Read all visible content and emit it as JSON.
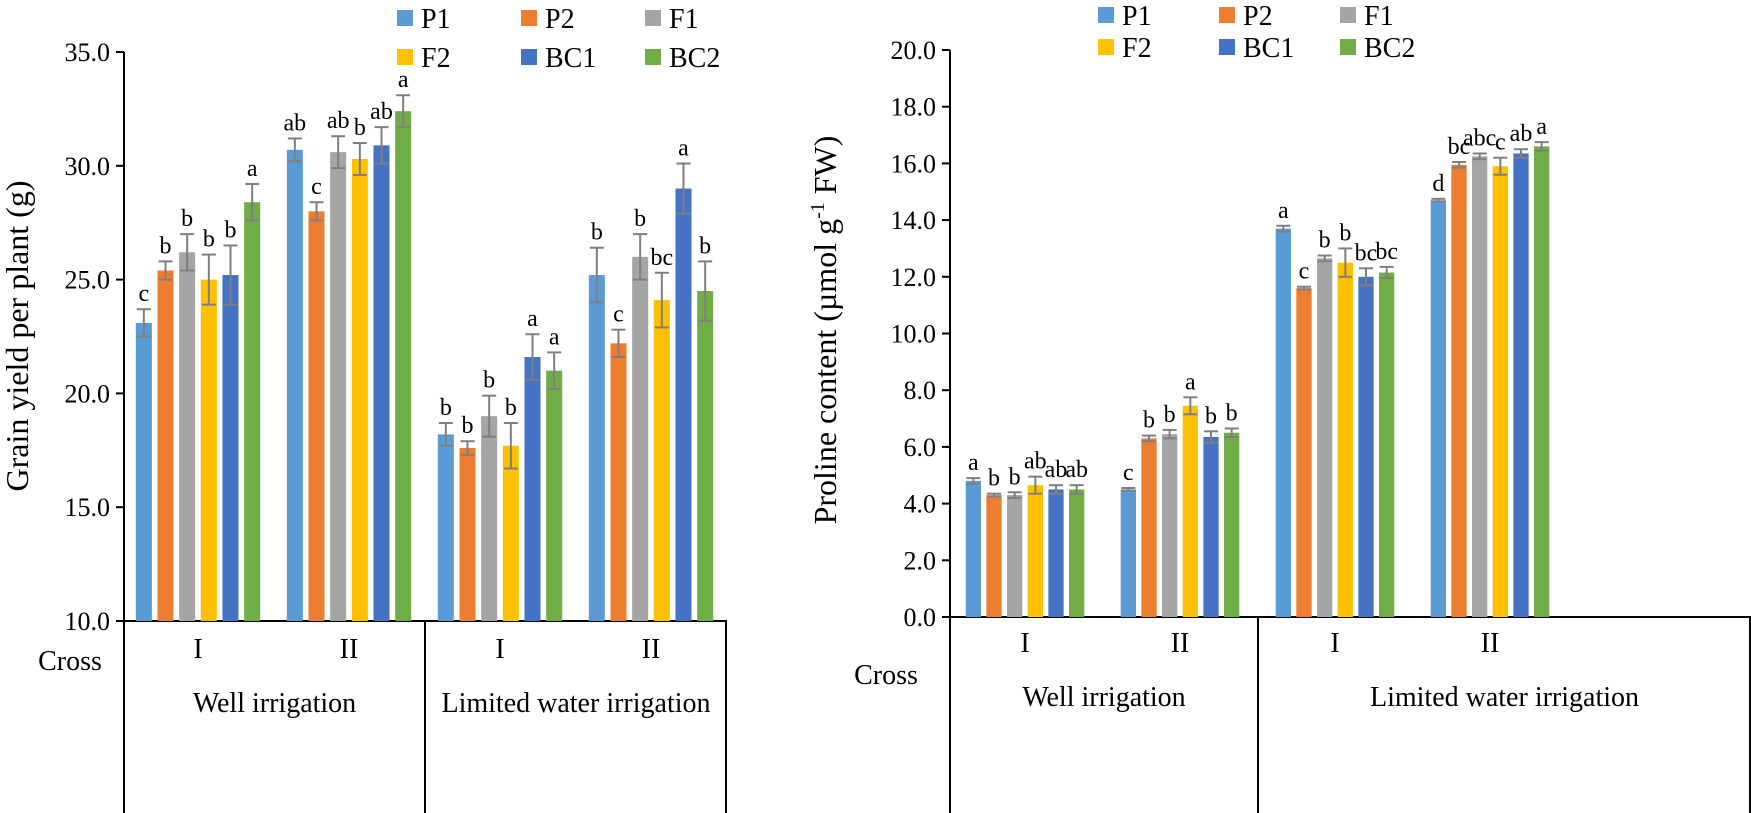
{
  "chart_data": [
    {
      "type": "bar",
      "ylabel": "Grain yield per plant (g)",
      "ylim": [
        10,
        35
      ],
      "yticks": [
        "10.0",
        "15.0",
        "20.0",
        "25.0",
        "30.0",
        "35.0"
      ],
      "cross_label": "Cross",
      "groups": [
        {
          "name": "Well  irrigation",
          "crosses": [
            "I",
            "II"
          ]
        },
        {
          "name": "Limited water irrigation",
          "crosses": [
            "I",
            "II"
          ]
        }
      ],
      "series": [
        {
          "name": "P1",
          "color": "#5B9BD5",
          "values": [
            23.1,
            30.7,
            18.2,
            25.2
          ],
          "errors": [
            0.6,
            0.5,
            0.5,
            1.2
          ],
          "letters": [
            "c",
            "ab",
            "b",
            "b"
          ]
        },
        {
          "name": "P2",
          "color": "#ED7D31",
          "values": [
            25.4,
            28.0,
            17.6,
            22.2
          ],
          "errors": [
            0.4,
            0.4,
            0.3,
            0.6
          ],
          "letters": [
            "b",
            "c",
            "b",
            "c"
          ]
        },
        {
          "name": "F1",
          "color": "#A5A5A5",
          "values": [
            26.2,
            30.6,
            19.0,
            26.0
          ],
          "errors": [
            0.8,
            0.7,
            0.9,
            1.0
          ],
          "letters": [
            "b",
            "ab",
            "b",
            "b"
          ]
        },
        {
          "name": "F2",
          "color": "#FFC000",
          "values": [
            25.0,
            30.3,
            17.7,
            24.1
          ],
          "errors": [
            1.1,
            0.7,
            1.0,
            1.2
          ],
          "letters": [
            "b",
            "b",
            "b",
            "bc"
          ]
        },
        {
          "name": "BC1",
          "color": "#4472C4",
          "values": [
            25.2,
            30.9,
            21.6,
            29.0
          ],
          "errors": [
            1.3,
            0.8,
            1.0,
            1.1
          ],
          "letters": [
            "b",
            "ab",
            "a",
            "a"
          ]
        },
        {
          "name": "BC2",
          "color": "#70AD47",
          "values": [
            28.4,
            32.4,
            21.0,
            24.5
          ],
          "errors": [
            0.8,
            0.7,
            0.8,
            1.3
          ],
          "letters": [
            "a",
            "a",
            "a",
            "b"
          ]
        }
      ]
    },
    {
      "type": "bar",
      "ylabel": "Proline content (µmol g",
      "ylabel_sup": "-1",
      "ylabel_tail": " FW)",
      "ylim": [
        0,
        20
      ],
      "yticks": [
        "0.0",
        "2.0",
        "4.0",
        "6.0",
        "8.0",
        "10.0",
        "12.0",
        "14.0",
        "16.0",
        "18.0",
        "20.0"
      ],
      "cross_label": "Cross",
      "groups": [
        {
          "name": "Well  irrigation",
          "crosses": [
            "I",
            "II"
          ]
        },
        {
          "name": "Limited water irrigation",
          "crosses": [
            "I",
            "II"
          ]
        }
      ],
      "series": [
        {
          "name": "P1",
          "color": "#5B9BD5",
          "values": [
            4.8,
            4.5,
            13.7,
            14.7
          ],
          "errors": [
            0.1,
            0.05,
            0.1,
            0.05
          ],
          "letters": [
            "a",
            "c",
            "a",
            "d"
          ]
        },
        {
          "name": "P2",
          "color": "#ED7D31",
          "values": [
            4.3,
            6.3,
            11.6,
            15.95
          ],
          "errors": [
            0.05,
            0.1,
            0.05,
            0.1
          ],
          "letters": [
            "b",
            "b",
            "c",
            "bc"
          ]
        },
        {
          "name": "F1",
          "color": "#A5A5A5",
          "values": [
            4.3,
            6.45,
            12.65,
            16.25
          ],
          "errors": [
            0.1,
            0.15,
            0.1,
            0.1
          ],
          "letters": [
            "b",
            "b",
            "b",
            "abc"
          ]
        },
        {
          "name": "F2",
          "color": "#FFC000",
          "values": [
            4.65,
            7.45,
            12.5,
            15.9
          ],
          "errors": [
            0.3,
            0.3,
            0.5,
            0.3
          ],
          "letters": [
            "ab",
            "a",
            "b",
            "c"
          ]
        },
        {
          "name": "BC1",
          "color": "#4472C4",
          "values": [
            4.5,
            6.35,
            12.0,
            16.35
          ],
          "errors": [
            0.15,
            0.2,
            0.3,
            0.15
          ],
          "letters": [
            "ab",
            "b",
            "bc",
            "ab"
          ]
        },
        {
          "name": "BC2",
          "color": "#70AD47",
          "values": [
            4.5,
            6.5,
            12.15,
            16.6
          ],
          "errors": [
            0.15,
            0.15,
            0.2,
            0.15
          ],
          "letters": [
            "ab",
            "b",
            "bc",
            "a"
          ]
        }
      ]
    }
  ]
}
